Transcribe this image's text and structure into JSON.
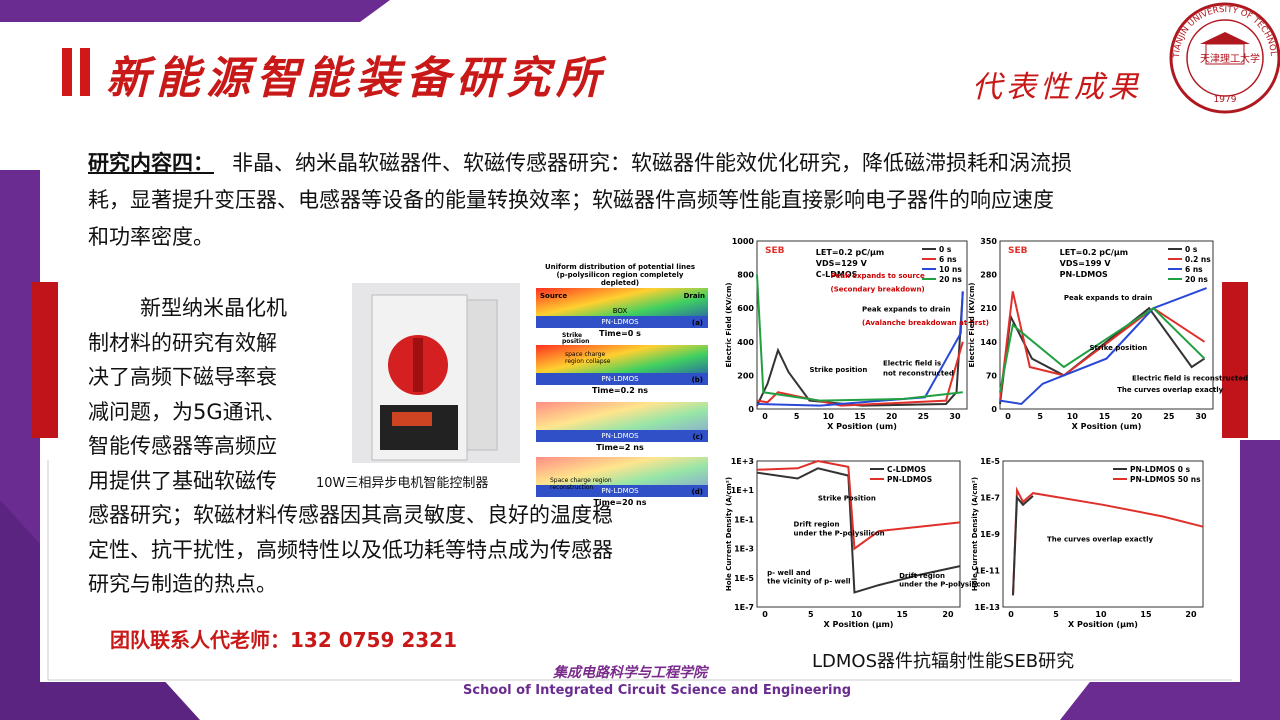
{
  "header": {
    "title": "新能源智能装备研究所",
    "subtitle": "代表性成果",
    "logo": {
      "ring": "TIANJIN UNIVERSITY OF TECHNOLOGY",
      "name": "天津理工大学",
      "year": "1979"
    }
  },
  "intro": {
    "heading": "研究内容四：",
    "lines": [
      "非晶、纳米晶软磁器件、软磁传感器研究：软磁器件能效优化研究，降低磁滞损耗和涡流损",
      "耗，显著提升变压器、电感器等设备的能量转换效率；软磁器件高频等性能直接影响电子器件的响应速度",
      "和功率密度。"
    ]
  },
  "paragraph": {
    "lines": [
      "新型纳米晶化机",
      "制材料的研究有效解",
      "决了高频下磁导率衰",
      "减问题，为5G通讯、",
      "智能传感器等高频应",
      "用提供了基础软磁传",
      "感器研究；软磁材料传感器因其高灵敏度、良好的温度稳",
      "定性、抗干扰性，高频特性以及低功耗等特点成为传感器",
      "研究与制造的热点。"
    ]
  },
  "contact": "团队联系人代老师：132 0759 2321",
  "figures": {
    "product_caption": "10W三相异步电机智能控制器",
    "seb_caption": "LDMOS器件抗辐射性能SEB研究",
    "simulation": {
      "top": "Uniform distribution of potential lines",
      "top2": "(p-polysilicon region completely",
      "top3": "depleted)",
      "source": "Source",
      "drain": "Drain",
      "box": "BOX",
      "device": "PN-LDMOS",
      "strike": "Strike",
      "strike2": "position",
      "charge": "space charge",
      "charge2": "region collapse",
      "charge3": "Space charge region",
      "charge4": "reconstruction",
      "times": [
        "Time=0 s",
        "Time=0.2 ns",
        "Time=2 ns",
        "Time=20 ns"
      ],
      "panels": [
        "(a)",
        "(b)",
        "(c)",
        "(d)"
      ]
    },
    "plots": [
      {
        "tag": "SEB",
        "ylabel": "Electric Field (KV/cm)",
        "xlabel": "X Position (um)",
        "yticks": [
          "0",
          "200",
          "400",
          "600",
          "800",
          "1000"
        ],
        "xticks": [
          "0",
          "5",
          "10",
          "15",
          "20",
          "25",
          "30"
        ],
        "info": [
          "LET=0.2 pC/μm",
          "VDS=129 V",
          "C-LDMOS"
        ],
        "legend": [
          {
            "name": "0 s",
            "color": "#333333"
          },
          {
            "name": "6 ns",
            "color": "#e0302a"
          },
          {
            "name": "10 ns",
            "color": "#2848d8"
          },
          {
            "name": "20 ns",
            "color": "#20a040"
          }
        ],
        "notes": [
          "Peak expands to source",
          "(Secondary breakdown)",
          "Peak expands to drain",
          "(Avalanche breakdowan at first)",
          "Strike position",
          "Electric field is",
          "not reconstructed"
        ]
      },
      {
        "tag": "SEB",
        "ylabel": "Electric Field (KV/cm)",
        "xlabel": "X Position (um)",
        "yticks": [
          "0",
          "70",
          "140",
          "210",
          "280",
          "350"
        ],
        "xticks": [
          "0",
          "5",
          "10",
          "15",
          "20",
          "25",
          "30"
        ],
        "info": [
          "LET=0.2 pC/μm",
          "VDS=199 V",
          "PN-LDMOS"
        ],
        "legend": [
          {
            "name": "0 s",
            "color": "#333333"
          },
          {
            "name": "0.2 ns",
            "color": "#e0302a"
          },
          {
            "name": "6 ns",
            "color": "#2848d8"
          },
          {
            "name": "20 ns",
            "color": "#20a040"
          }
        ],
        "notes": [
          "Peak expands to drain",
          "Strike position",
          "The curves overlap exactly",
          "Electric field is reconstructed"
        ]
      },
      {
        "tag": "",
        "ylabel": "Hole Current Density (A/cm²)",
        "xlabel": "X Position (μm)",
        "yticks": [
          "1E+3",
          "1E+1",
          "1E-1",
          "1E-3",
          "1E-5",
          "1E-7"
        ],
        "xticks": [
          "0",
          "5",
          "10",
          "15",
          "20"
        ],
        "info": [],
        "legend": [
          {
            "name": "C-LDMOS",
            "color": "#333333"
          },
          {
            "name": "PN-LDMOS",
            "color": "#e0302a"
          }
        ],
        "notes": [
          "Strike Position",
          "Drift region",
          "under the P-polysilicon",
          "p- well and",
          "the vicinity of p- well",
          "Drift region",
          "under the P-polysilicon"
        ]
      },
      {
        "tag": "",
        "ylabel": "Hole Current Density (A/cm²)",
        "xlabel": "X Position (μm)",
        "yticks": [
          "1E-5",
          "1E-7",
          "1E-9",
          "1E-11",
          "1E-13"
        ],
        "xticks": [
          "0",
          "5",
          "10",
          "15",
          "20"
        ],
        "info": [],
        "legend": [
          {
            "name": "PN-LDMOS 0 s",
            "color": "#333333"
          },
          {
            "name": "PN-LDMOS 50 ns",
            "color": "#e0302a"
          }
        ],
        "notes": [
          "The curves overlap exactly"
        ]
      }
    ]
  },
  "footer": {
    "cn": "集成电路科学与工程学院",
    "en": "School of Integrated Circuit Science and Engineering"
  }
}
